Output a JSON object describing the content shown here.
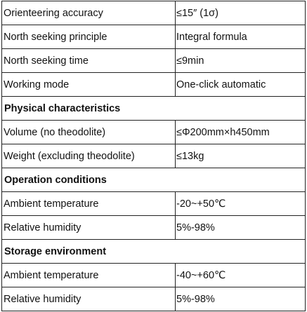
{
  "table": {
    "rows": [
      {
        "type": "row",
        "label": "Orienteering accuracy",
        "value": "≤15″ (1σ)"
      },
      {
        "type": "row",
        "label": "North seeking principle",
        "value": "Integral formula"
      },
      {
        "type": "row",
        "label": "North seeking time",
        "value": "≤9min"
      },
      {
        "type": "row",
        "label": "Working mode",
        "value": "One-click automatic"
      },
      {
        "type": "section",
        "label": "Physical characteristics"
      },
      {
        "type": "row",
        "label": "Volume (no theodolite)",
        "value": "≤Φ200mm×h450mm"
      },
      {
        "type": "row",
        "label": "Weight (excluding theodolite)",
        "value": "≤13kg"
      },
      {
        "type": "section",
        "label": "Operation conditions"
      },
      {
        "type": "row",
        "label": "Ambient temperature",
        "value": "-20~+50℃"
      },
      {
        "type": "row",
        "label": "Relative humidity",
        "value": "5%-98%"
      },
      {
        "type": "section",
        "label": "Storage environment"
      },
      {
        "type": "row",
        "label": "Ambient temperature",
        "value": "-40~+60℃"
      },
      {
        "type": "row",
        "label": "Relative humidity",
        "value": "5%-98%"
      }
    ]
  }
}
